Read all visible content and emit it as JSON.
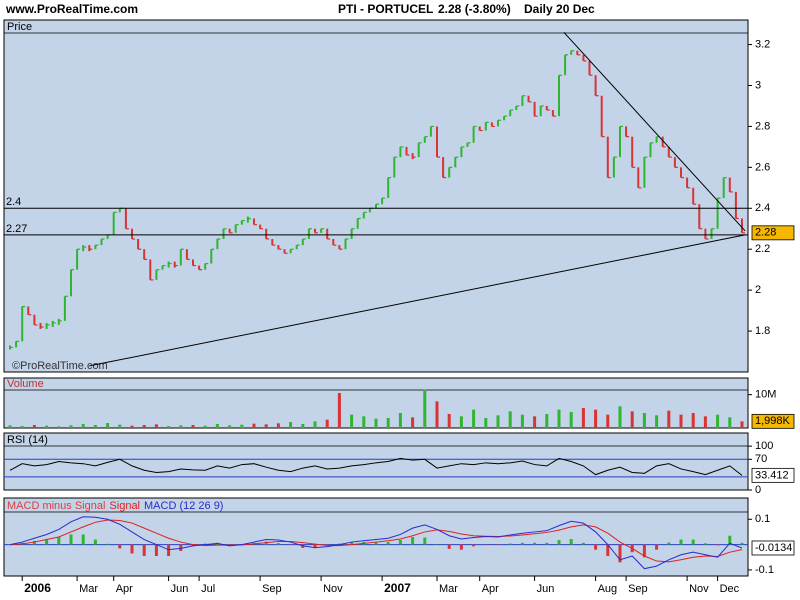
{
  "header": {
    "site": "www.ProRealTime.com",
    "symbol": "PTI - PORTUCEL",
    "change": "2.28 (-3.80%)",
    "period": "Daily  20 Dec",
    "watermark": "©ProRealTime.com"
  },
  "chart_data": [
    {
      "type": "price-bars",
      "title": "Price",
      "up_color": "#2fb52f",
      "down_color": "#d93333",
      "values": [
        1.72,
        1.75,
        1.92,
        1.88,
        1.83,
        1.82,
        1.83,
        1.84,
        1.85,
        1.97,
        2.1,
        2.2,
        2.21,
        2.2,
        2.22,
        2.25,
        2.27,
        2.38,
        2.4,
        2.3,
        2.25,
        2.2,
        2.15,
        2.05,
        2.1,
        2.12,
        2.13,
        2.12,
        2.2,
        2.15,
        2.12,
        2.1,
        2.13,
        2.2,
        2.25,
        2.3,
        2.28,
        2.32,
        2.34,
        2.35,
        2.32,
        2.3,
        2.25,
        2.22,
        2.2,
        2.18,
        2.2,
        2.22,
        2.25,
        2.3,
        2.28,
        2.3,
        2.25,
        2.22,
        2.2,
        2.25,
        2.3,
        2.35,
        2.38,
        2.4,
        2.42,
        2.45,
        2.55,
        2.65,
        2.7,
        2.66,
        2.65,
        2.72,
        2.75,
        2.8,
        2.65,
        2.55,
        2.6,
        2.65,
        2.7,
        2.72,
        2.8,
        2.78,
        2.82,
        2.8,
        2.83,
        2.85,
        2.88,
        2.9,
        2.95,
        2.92,
        2.85,
        2.9,
        2.88,
        2.85,
        3.05,
        3.15,
        3.17,
        3.15,
        3.12,
        3.05,
        2.95,
        2.75,
        2.55,
        2.65,
        2.8,
        2.75,
        2.6,
        2.5,
        2.65,
        2.72,
        2.75,
        2.7,
        2.65,
        2.6,
        2.55,
        2.5,
        2.42,
        2.3,
        2.25,
        2.3,
        2.45,
        2.55,
        2.48,
        2.35,
        2.28
      ],
      "xlim": [
        0,
        120
      ],
      "xticks": [
        {
          "value": 2,
          "label": "2006"
        },
        {
          "value": 11,
          "label": "Mar"
        },
        {
          "value": 17,
          "label": "Apr"
        },
        {
          "value": 26,
          "label": "Jun"
        },
        {
          "value": 31,
          "label": "Jul"
        },
        {
          "value": 41,
          "label": "Sep"
        },
        {
          "value": 51,
          "label": "Nov"
        },
        {
          "value": 61,
          "label": "2007"
        },
        {
          "value": 70,
          "label": "Mar"
        },
        {
          "value": 77,
          "label": "Apr"
        },
        {
          "value": 86,
          "label": "Jun"
        },
        {
          "value": 96,
          "label": "Aug"
        },
        {
          "value": 101,
          "label": "Sep"
        },
        {
          "value": 111,
          "label": "Nov"
        },
        {
          "value": 116,
          "label": "Dec"
        }
      ],
      "ylim": [
        1.6,
        3.32
      ],
      "yticks": [
        1.8,
        2,
        2.2,
        2.4,
        2.6,
        2.8,
        3,
        3.2
      ],
      "hlines": [
        2.4,
        2.27
      ],
      "trendlines": [
        [
          [
            13,
            1.63
          ],
          [
            120.5,
            2.27
          ]
        ],
        [
          [
            90.8,
            3.26
          ],
          [
            120.5,
            2.29
          ]
        ]
      ],
      "last": 2.28
    },
    {
      "type": "volume",
      "title": "Volume",
      "xlim": [
        0,
        60
      ],
      "ylim": [
        0,
        15
      ],
      "yticks": [
        {
          "value": 10,
          "label": "10M"
        }
      ],
      "values": [
        0.8,
        0.6,
        0.9,
        0.7,
        0.5,
        0.8,
        1.2,
        0.9,
        1.5,
        1.0,
        0.7,
        0.9,
        1.1,
        0.6,
        0.8,
        0.9,
        0.7,
        1.2,
        0.8,
        1.0,
        1.3,
        1.1,
        1.4,
        1.8,
        1.2,
        2.0,
        2.5,
        10.5,
        4.0,
        3.5,
        2.8,
        3.0,
        4.5,
        3.2,
        11.5,
        8.0,
        4.2,
        3.5,
        5.5,
        3.0,
        3.8,
        5.0,
        4.0,
        3.5,
        4.2,
        5.5,
        4.8,
        6.0,
        5.5,
        4.0,
        6.5,
        5.0,
        4.5,
        3.8,
        5.2,
        4.0,
        4.5,
        3.5,
        4.0,
        3.2,
        1.998
      ],
      "last_label": "1,998K"
    },
    {
      "type": "line",
      "title": "RSI (14)",
      "color": "#000000",
      "xlim": [
        0,
        60
      ],
      "ylim": [
        0,
        130
      ],
      "yticks": [
        0,
        70,
        100
      ],
      "levels": [
        30,
        70
      ],
      "level_color": "#2a3fbf",
      "values": [
        45,
        60,
        55,
        58,
        65,
        62,
        60,
        55,
        63,
        70,
        55,
        45,
        40,
        42,
        48,
        46,
        45,
        55,
        50,
        58,
        60,
        52,
        45,
        42,
        50,
        55,
        48,
        50,
        55,
        58,
        62,
        65,
        72,
        68,
        70,
        50,
        55,
        60,
        58,
        62,
        60,
        62,
        66,
        58,
        55,
        72,
        65,
        55,
        35,
        45,
        52,
        40,
        38,
        55,
        60,
        48,
        42,
        35,
        45,
        55,
        33.412
      ]
    },
    {
      "type": "macd",
      "xlim": [
        0,
        60
      ],
      "ylim": [
        -0.124,
        0.184
      ],
      "yticks": [
        -0.1,
        0.1
      ],
      "up_color": "#2fb52f",
      "down_color": "#d93333",
      "series": [
        {
          "name": "MACD minus Signal",
          "color": "#d94040",
          "values": [
            0,
            0.007,
            0.015,
            0.02,
            0.03,
            0.04,
            0.04,
            0.02,
            0.003,
            -0.015,
            -0.035,
            -0.045,
            -0.045,
            -0.045,
            -0.025,
            -0.005,
            0.004,
            0.007,
            -0.003,
            0.001,
            0.007,
            0.012,
            0.006,
            -0.002,
            -0.013,
            -0.014,
            -0.005,
            0.004,
            0.01,
            0.01,
            0.01,
            0.01,
            0.018,
            0.03,
            0.028,
            0.002,
            -0.017,
            -0.02,
            -0.007,
            -0.001,
            -0.002,
            0.004,
            0.007,
            0.007,
            0.007,
            0.018,
            0.022,
            0.007,
            -0.02,
            -0.045,
            -0.07,
            -0.03,
            -0.05,
            -0.02,
            0.008,
            0.02,
            0.02,
            0.005,
            -0.003,
            0.035,
            0.0066
          ]
        },
        {
          "name": "Signal",
          "color": "#dd2222",
          "values": [
            0,
            0.003,
            0.01,
            0.02,
            0.03,
            0.05,
            0.07,
            0.088,
            0.097,
            0.095,
            0.085,
            0.065,
            0.045,
            0.025,
            0.01,
            0,
            -0.004,
            -0.002,
            -0.002,
            -0.001,
            0.003,
            0.008,
            0.012,
            0.012,
            0.008,
            0.002,
            -0.003,
            -0.004,
            0,
            0.005,
            0.01,
            0.015,
            0.022,
            0.035,
            0.05,
            0.058,
            0.052,
            0.042,
            0.035,
            0.033,
            0.032,
            0.034,
            0.038,
            0.043,
            0.048,
            0.057,
            0.07,
            0.078,
            0.07,
            0.045,
            0.01,
            -0.015,
            -0.045,
            -0.065,
            -0.068,
            -0.06,
            -0.05,
            -0.045,
            -0.047,
            -0.03,
            -0.02
          ]
        },
        {
          "name": "MACD (12 26 9)",
          "color": "#2a2acc",
          "values": [
            0,
            0.01,
            0.025,
            0.04,
            0.06,
            0.09,
            0.11,
            0.108,
            0.1,
            0.08,
            0.05,
            0.02,
            0,
            -0.02,
            -0.015,
            -0.005,
            0,
            0.005,
            -0.005,
            0,
            0.01,
            0.02,
            0.018,
            0.01,
            -0.005,
            -0.012,
            -0.008,
            0,
            0.01,
            0.015,
            0.02,
            0.025,
            0.04,
            0.065,
            0.078,
            0.06,
            0.035,
            0.022,
            0.028,
            0.032,
            0.03,
            0.038,
            0.045,
            0.05,
            0.055,
            0.075,
            0.092,
            0.085,
            0.05,
            0,
            -0.06,
            -0.045,
            -0.095,
            -0.085,
            -0.06,
            -0.04,
            -0.03,
            -0.04,
            -0.05,
            0.005,
            -0.0134
          ]
        }
      ]
    }
  ]
}
